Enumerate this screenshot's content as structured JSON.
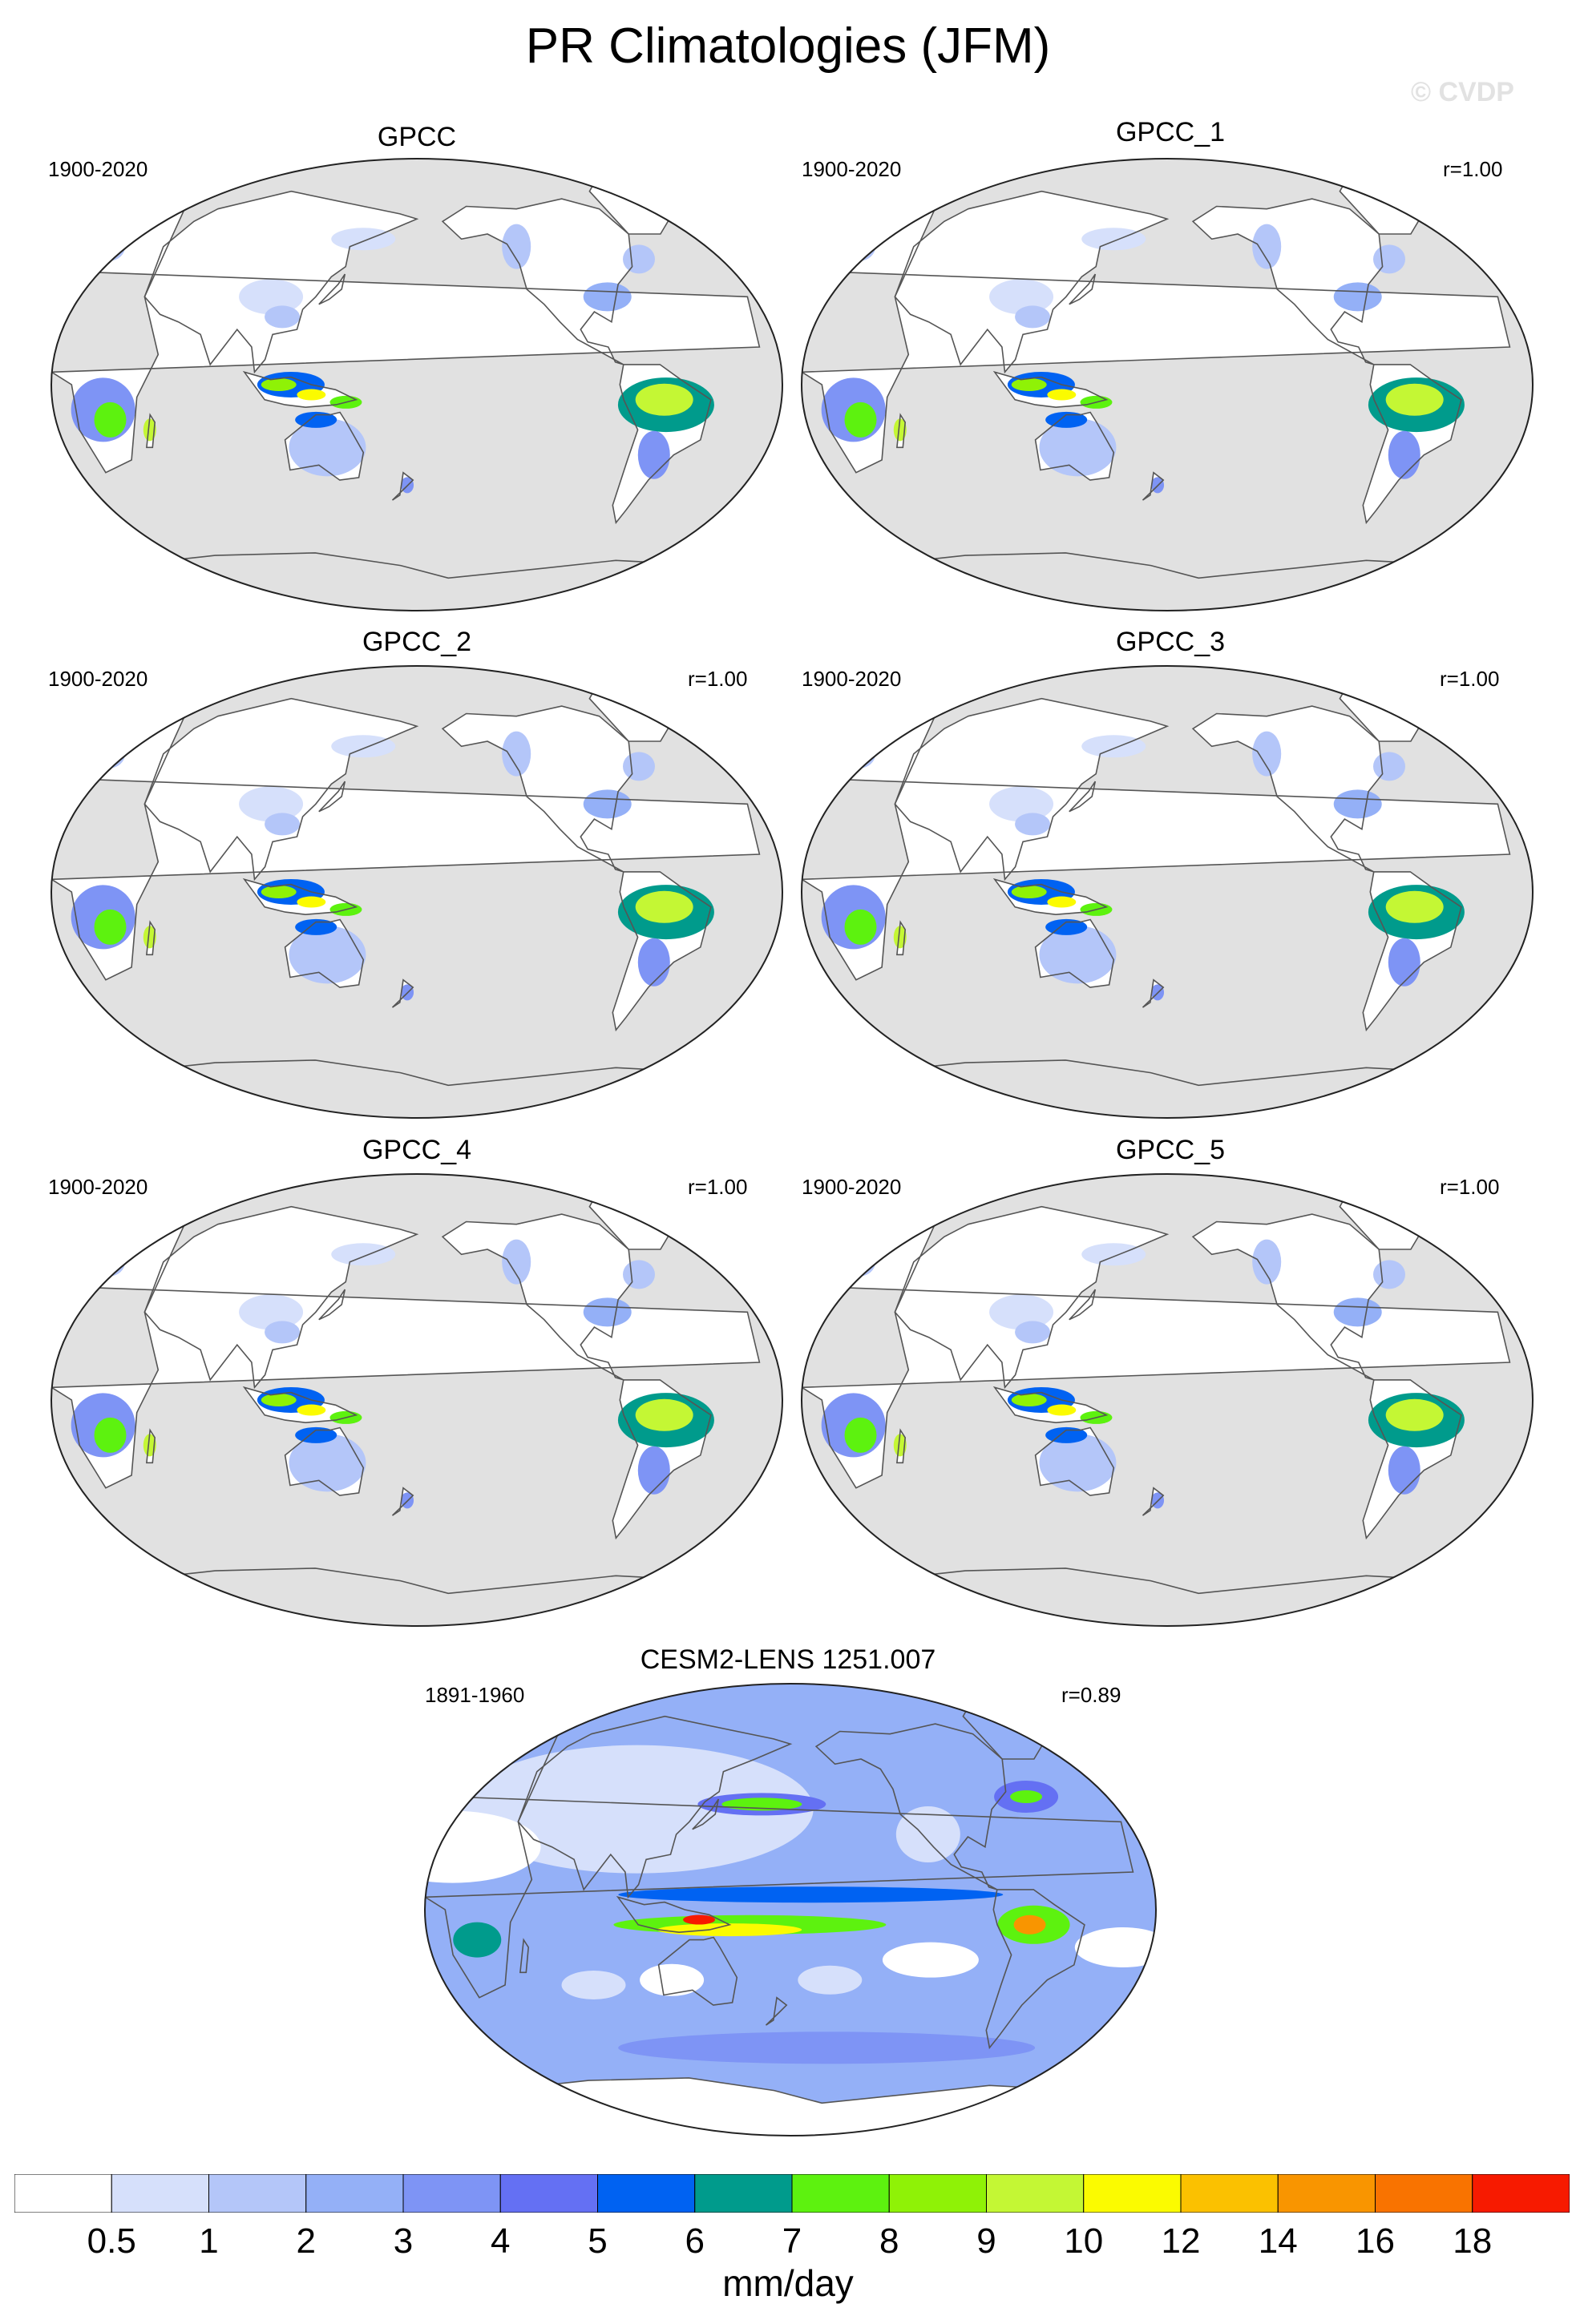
{
  "title": "PR Climatologies (JFM)",
  "watermark": "© CVDP",
  "panels": [
    {
      "title": "GPCC",
      "years": "1900-2020",
      "r": "",
      "style": "obs"
    },
    {
      "title": "GPCC_1",
      "years": "1900-2020",
      "r": "r=1.00",
      "style": "obs"
    },
    {
      "title": "GPCC_2",
      "years": "1900-2020",
      "r": "r=1.00",
      "style": "obs"
    },
    {
      "title": "GPCC_3",
      "years": "1900-2020",
      "r": "r=1.00",
      "style": "obs"
    },
    {
      "title": "GPCC_4",
      "years": "1900-2020",
      "r": "r=1.00",
      "style": "obs"
    },
    {
      "title": "GPCC_5",
      "years": "1900-2020",
      "r": "r=1.00",
      "style": "obs"
    },
    {
      "title": "CESM2-LENS 1251.007",
      "years": "1891-1960",
      "r": "r=0.89",
      "style": "model"
    }
  ],
  "colorbar": {
    "labels": [
      "0.5",
      "1",
      "2",
      "3",
      "4",
      "5",
      "6",
      "7",
      "8",
      "9",
      "10",
      "12",
      "14",
      "16",
      "18"
    ],
    "colors": [
      "#ffffff",
      "#d6e0fb",
      "#b4c6f9",
      "#94b0f7",
      "#7e94f5",
      "#6470f3",
      "#0062f2",
      "#009b8c",
      "#5df20f",
      "#8ff206",
      "#c4f734",
      "#fbfb00",
      "#fbc100",
      "#f99500",
      "#f97300",
      "#f71a00"
    ],
    "units": "mm/day"
  }
}
